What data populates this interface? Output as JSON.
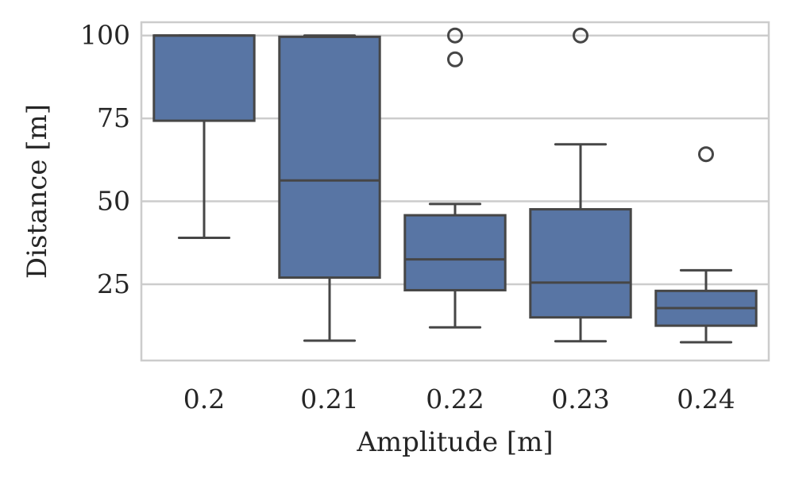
{
  "chart_data": {
    "type": "box",
    "title": "",
    "xlabel": "Amplitude [m]",
    "ylabel": "Distance [m]",
    "categories": [
      "0.2",
      "0.21",
      "0.22",
      "0.23",
      "0.24"
    ],
    "ylim": [
      2,
      104
    ],
    "yticks": [
      25,
      50,
      75,
      100
    ],
    "grid": true,
    "box_color": "#5875a4",
    "line_color": "#464646",
    "grid_color": "#cccccc",
    "boxes": [
      {
        "category": "0.2",
        "whisker_low": 39,
        "q1": 74.3,
        "median": 100,
        "q3": 100,
        "whisker_high": 100,
        "outliers": []
      },
      {
        "category": "0.21",
        "whisker_low": 8,
        "q1": 27,
        "median": 56.3,
        "q3": 99.6,
        "whisker_high": 100,
        "outliers": []
      },
      {
        "category": "0.22",
        "whisker_low": 12,
        "q1": 23.2,
        "median": 32.5,
        "q3": 45.8,
        "whisker_high": 49.2,
        "outliers": [
          100,
          92.8
        ]
      },
      {
        "category": "0.23",
        "whisker_low": 7.8,
        "q1": 15,
        "median": 25.5,
        "q3": 47.6,
        "whisker_high": 67.2,
        "outliers": [
          100
        ]
      },
      {
        "category": "0.24",
        "whisker_low": 7.5,
        "q1": 12.5,
        "median": 17.8,
        "q3": 23,
        "whisker_high": 29.2,
        "outliers": [
          64.2
        ]
      }
    ]
  }
}
